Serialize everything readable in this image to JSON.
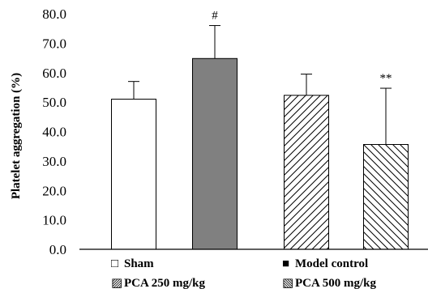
{
  "chart_data": {
    "type": "bar",
    "ylabel": "Platelet aggregation (%)",
    "ylim": [
      0,
      80
    ],
    "yticks": [
      "0.0",
      "10.0",
      "20.0",
      "30.0",
      "40.0",
      "50.0",
      "60.0",
      "70.0",
      "80.0"
    ],
    "categories": [
      "Sham",
      "Model control",
      "PCA 250 mg/kg",
      "PCA 500 mg/kg"
    ],
    "values": [
      51.0,
      64.8,
      52.3,
      35.6
    ],
    "error_upper": [
      6.0,
      11.2,
      7.2,
      19.1
    ],
    "annotations": [
      "",
      "#",
      "",
      "**"
    ],
    "fills": [
      "white",
      "gray",
      "hatch-forward",
      "hatch-backward"
    ],
    "grid": false,
    "legend_position": "bottom",
    "legend": [
      {
        "label": "Sham",
        "symbol": "□"
      },
      {
        "label": "Model control",
        "symbol": "■"
      },
      {
        "label": "PCA 250 mg/kg",
        "symbol": "▨"
      },
      {
        "label": "PCA 500 mg/kg",
        "symbol": "▧"
      }
    ],
    "colors": {
      "bar_gray": "#808080",
      "stroke": "#000000"
    }
  }
}
